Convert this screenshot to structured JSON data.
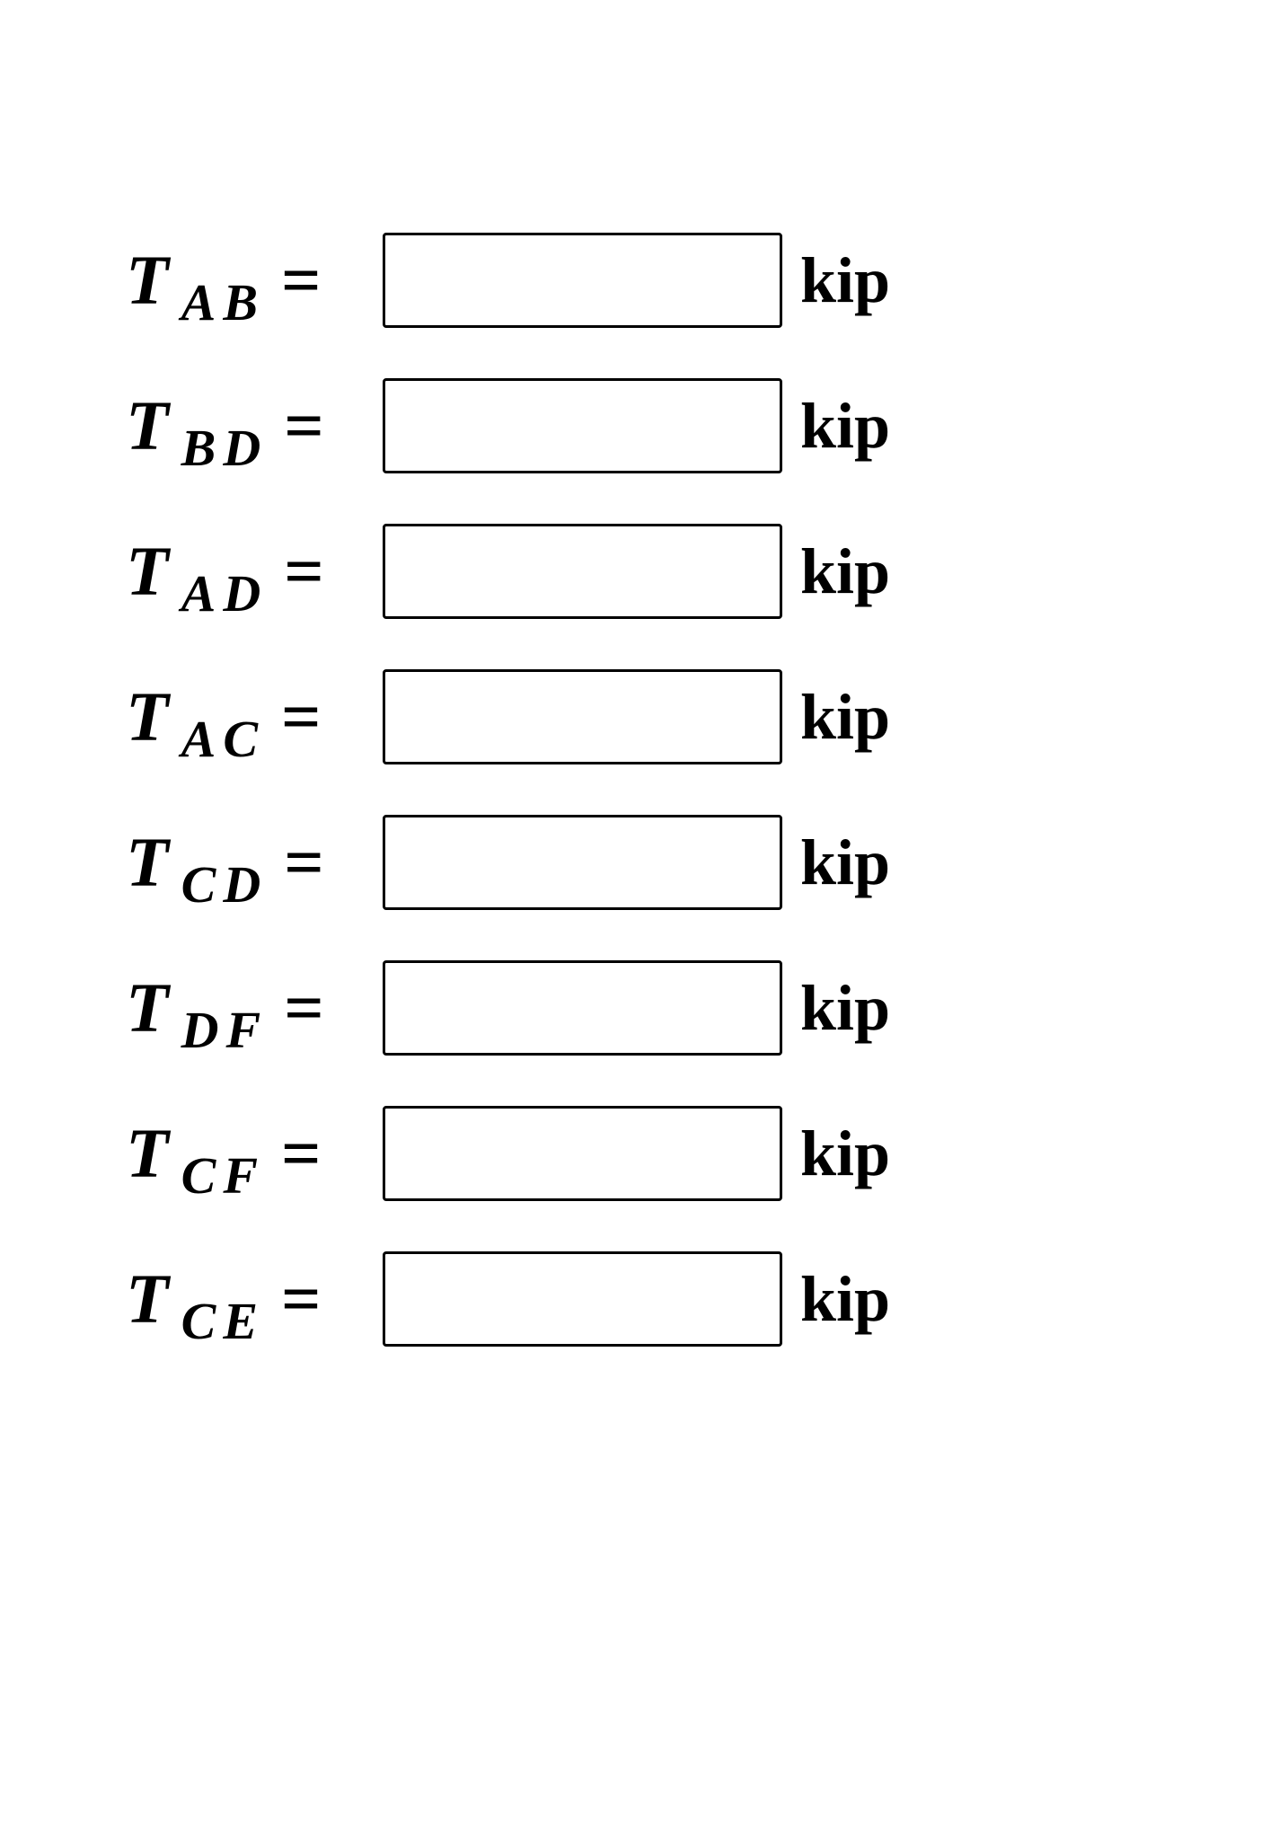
{
  "rows": [
    {
      "varMain": "T",
      "varSub": "AB",
      "equals": "=",
      "value": "",
      "unit": "kip"
    },
    {
      "varMain": "T",
      "varSub": "BD",
      "equals": "=",
      "value": "",
      "unit": "kip"
    },
    {
      "varMain": "T",
      "varSub": "AD",
      "equals": "=",
      "value": "",
      "unit": "kip"
    },
    {
      "varMain": "T",
      "varSub": "AC",
      "equals": "=",
      "value": "",
      "unit": "kip"
    },
    {
      "varMain": "T",
      "varSub": "CD",
      "equals": "=",
      "value": "",
      "unit": "kip"
    },
    {
      "varMain": "T",
      "varSub": "DF",
      "equals": "=",
      "value": "",
      "unit": "kip"
    },
    {
      "varMain": "T",
      "varSub": "CF",
      "equals": "=",
      "value": "",
      "unit": "kip"
    },
    {
      "varMain": "T",
      "varSub": "CE",
      "equals": "=",
      "value": "",
      "unit": "kip"
    }
  ],
  "colors": {
    "background": "#ffffff",
    "text": "#000000",
    "border": "#000000"
  },
  "typography": {
    "fontFamily": "Times New Roman",
    "mainFontSize": 78,
    "subFontSize": 58,
    "unitFontSize": 72,
    "fontWeight": "bold",
    "fontStyle": "italic"
  },
  "layout": {
    "inputWidth": 445,
    "inputHeight": 106,
    "borderWidth": 3,
    "rowGap": 38
  }
}
